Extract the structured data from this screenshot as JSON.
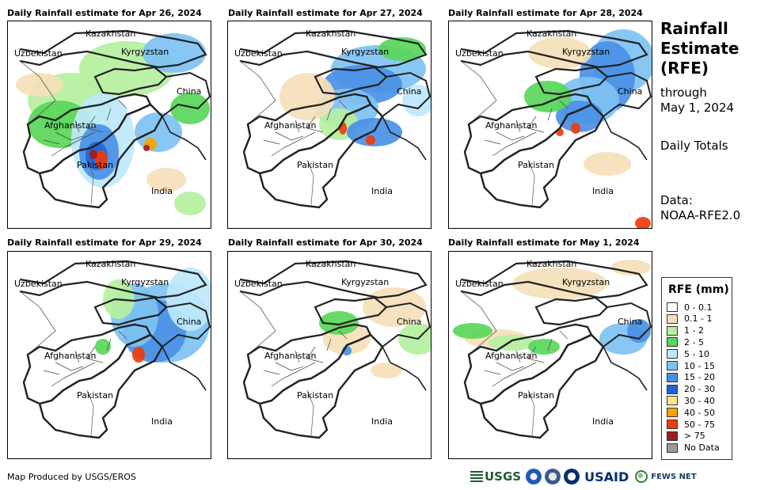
{
  "panels": [
    {
      "title": "Daily Rainfall estimate for Apr 26, 2024",
      "intensity": "very high"
    },
    {
      "title": "Daily Rainfall estimate for Apr 27, 2024",
      "intensity": "high"
    },
    {
      "title": "Daily Rainfall estimate for Apr 28, 2024",
      "intensity": "high"
    },
    {
      "title": "Daily Rainfall estimate for Apr 29, 2024",
      "intensity": "moderate"
    },
    {
      "title": "Daily Rainfall estimate for Apr 30, 2024",
      "intensity": "low"
    },
    {
      "title": "Daily Rainfall estimate for May 1, 2024",
      "intensity": "low"
    }
  ],
  "map_labels": {
    "kazakhstan": "Kazakhstan",
    "uzbekistan": "Uzbekistan",
    "kyrgyzstan": "Kyrgyzstan",
    "china": "China",
    "afghanistan": "Afghanistan",
    "pakistan": "Pakistan",
    "india": "India"
  },
  "info": {
    "title_lines": [
      "Rainfall",
      "Estimate",
      "(RFE)"
    ],
    "through_label": "through",
    "through_date": "May 1, 2024",
    "period": "Daily Totals",
    "data_label": "Data:",
    "data_source": "NOAA-RFE2.0"
  },
  "legend": {
    "title": "RFE (mm)",
    "items": [
      {
        "label": "0 - 0.1",
        "color": "#ffffff"
      },
      {
        "label": "0.1 - 1",
        "color": "#f5dfb8"
      },
      {
        "label": "1 - 2",
        "color": "#b5f0a0"
      },
      {
        "label": "2 - 5",
        "color": "#59d659"
      },
      {
        "label": "5 - 10",
        "color": "#bde8fa"
      },
      {
        "label": "10 - 15",
        "color": "#7ec2f2"
      },
      {
        "label": "15 - 20",
        "color": "#4a90e6"
      },
      {
        "label": "20 - 30",
        "color": "#1e64d6"
      },
      {
        "label": "30 - 40",
        "color": "#f7e58a"
      },
      {
        "label": "40 - 50",
        "color": "#f5a300"
      },
      {
        "label": "50 - 75",
        "color": "#f03c0a"
      },
      {
        "label": "> 75",
        "color": "#a01c1c"
      },
      {
        "label": "No Data",
        "color": "#9a9a9a"
      }
    ]
  },
  "footer": {
    "credit": "Map Produced by USGS/EROS",
    "logos": {
      "usgs": "USGS",
      "usaid": "USAID",
      "fews": "FEWS NET"
    }
  }
}
